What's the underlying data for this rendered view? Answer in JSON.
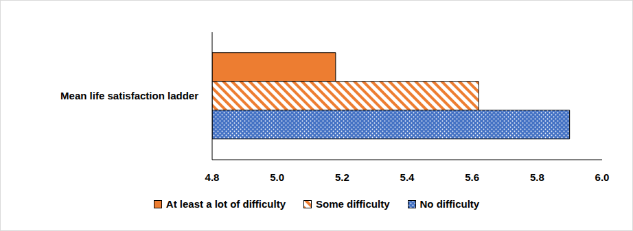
{
  "chart_data": {
    "type": "bar",
    "orientation": "horizontal",
    "categories": [
      "Mean life satisfaction ladder"
    ],
    "series": [
      {
        "name": "At least a lot of difficulty",
        "color": "#ED7D31",
        "values": [
          5.18
        ]
      },
      {
        "name": "Some difficulty",
        "color": "#ED7D31",
        "values": [
          5.62
        ]
      },
      {
        "name": "No difficulty",
        "color": "#4472C4",
        "values": [
          5.9
        ]
      }
    ],
    "xlim": [
      4.8,
      6.0
    ],
    "xticks": [
      4.8,
      {
        "value": 5,
        "label": "5.0"
      },
      5.2,
      5.4,
      5.6,
      5.8,
      {
        "value": 6,
        "label": "6.0"
      }
    ],
    "grid": false,
    "legend": "bottom"
  }
}
